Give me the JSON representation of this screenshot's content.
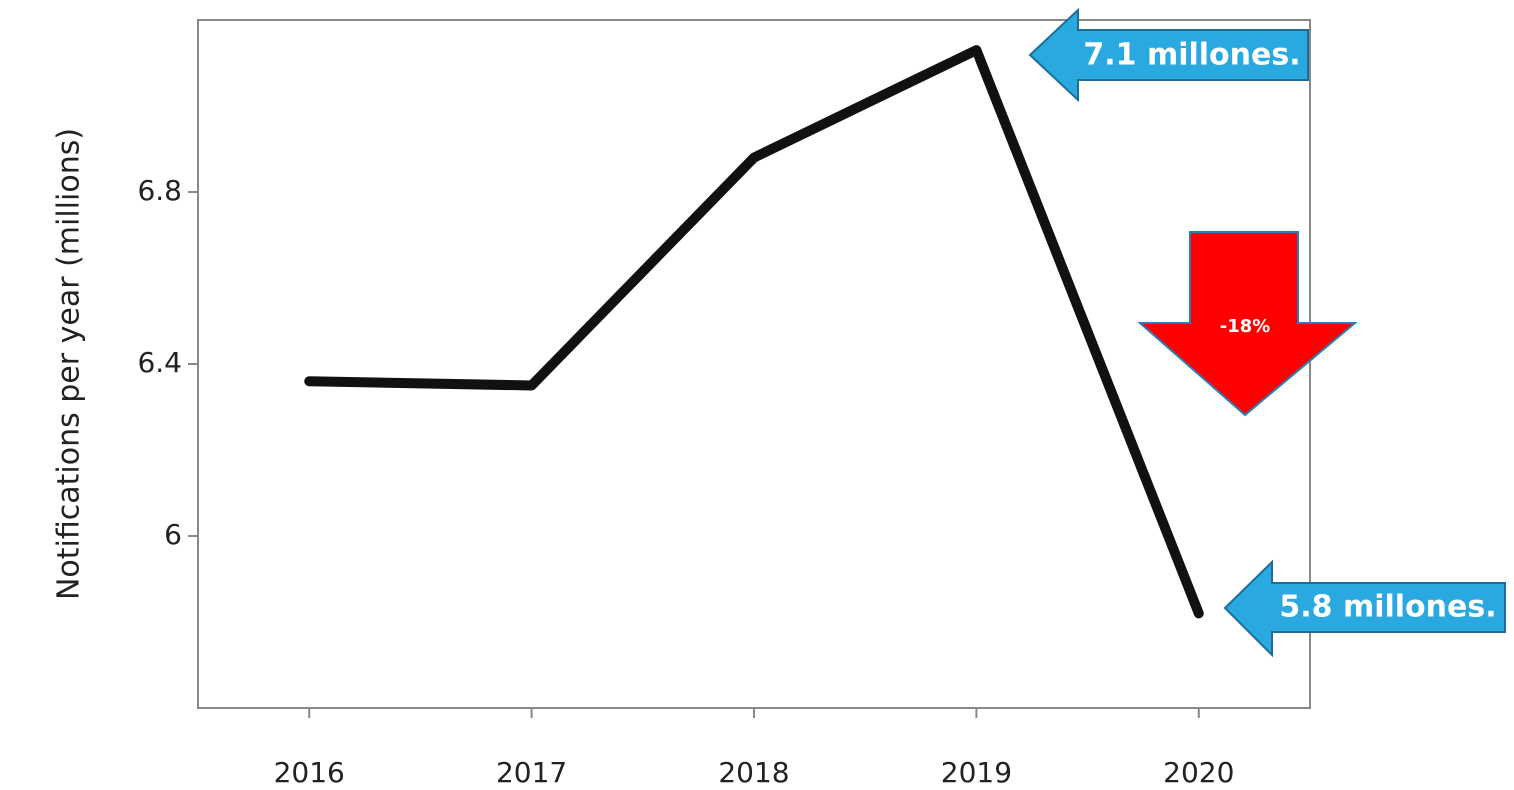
{
  "chart_data": {
    "type": "line",
    "y_label": "Notifications per year (millions)",
    "x": [
      2016,
      2017,
      2018,
      2019,
      2020
    ],
    "series": [
      {
        "name": "Notifications",
        "color": "#111111",
        "values": [
          6.36,
          6.35,
          6.88,
          7.13,
          5.82
        ]
      }
    ],
    "xlim": [
      2015.5,
      2020.5
    ],
    "xticks": [
      2016,
      2017,
      2018,
      2019,
      2020
    ],
    "ylim": [
      5.6,
      7.2
    ],
    "yticks": [
      6,
      6.4,
      6.8
    ],
    "grid": false,
    "annotations": [
      "7.1 millones.",
      "5.8 millones.",
      "-18%"
    ]
  }
}
